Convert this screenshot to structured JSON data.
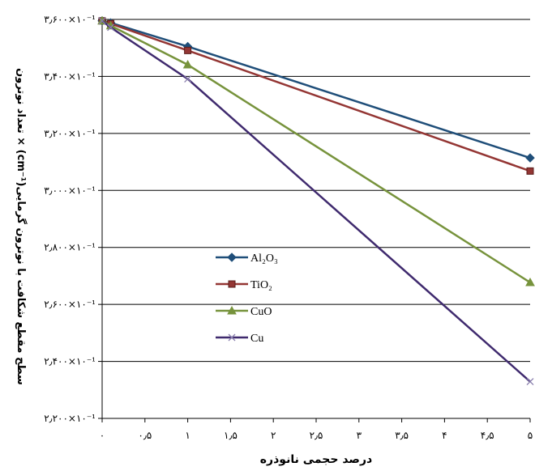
{
  "chart_data": {
    "type": "line",
    "xlabel": "درصد حجمی نانوذره",
    "ylabel": "سطح مقطع شکافت با نوترون گرمایی(cm⁻¹) × تعداد نوترون",
    "x_tick_labels": [
      "۰",
      "۰٫۵",
      "۱",
      "۱٫۵",
      "۲",
      "۲٫۵",
      "۳",
      "۳٫۵",
      "۴",
      "۴٫۵",
      "۵"
    ],
    "x_ticks": [
      0,
      0.5,
      1,
      1.5,
      2,
      2.5,
      3,
      3.5,
      4,
      4.5,
      5
    ],
    "xlim": [
      0,
      5
    ],
    "y_tick_labels": [
      "۲٫۲۰۰×۱۰⁻¹",
      "۲٫۴۰۰×۱۰⁻¹",
      "۲٫۶۰۰×۱۰⁻¹",
      "۲٫۸۰۰×۱۰⁻¹",
      "۳٫۰۰۰×۱۰⁻¹",
      "۳٫۲۰۰×۱۰⁻¹",
      "۳٫۴۰۰×۱۰⁻¹",
      "۳٫۶۰۰×۱۰⁻¹"
    ],
    "y_ticks": [
      0.22,
      0.24,
      0.26,
      0.28,
      0.3,
      0.32,
      0.34,
      0.36
    ],
    "ylim": [
      0.22,
      0.36
    ],
    "grid": "horizontal",
    "legend_position": "center",
    "series": [
      {
        "name": "Al₂O₃",
        "color": "#1f4e79",
        "marker": "diamond",
        "x": [
          0,
          0.1,
          1,
          5
        ],
        "y": [
          0.3595,
          0.3588,
          0.3505,
          0.3114
        ]
      },
      {
        "name": "TiO₂",
        "color": "#943634",
        "marker": "square",
        "x": [
          0,
          0.1,
          1,
          5
        ],
        "y": [
          0.3595,
          0.3585,
          0.3491,
          0.3068
        ]
      },
      {
        "name": "CuO",
        "color": "#77933c",
        "marker": "triangle",
        "x": [
          0,
          0.1,
          1,
          5
        ],
        "y": [
          0.3595,
          0.3578,
          0.3441,
          0.2677
        ]
      },
      {
        "name": "Cu",
        "color": "#3f2a6e",
        "marker": "x",
        "x": [
          0,
          0.1,
          1,
          5
        ],
        "y": [
          0.3595,
          0.3572,
          0.3391,
          0.2329
        ]
      }
    ]
  }
}
